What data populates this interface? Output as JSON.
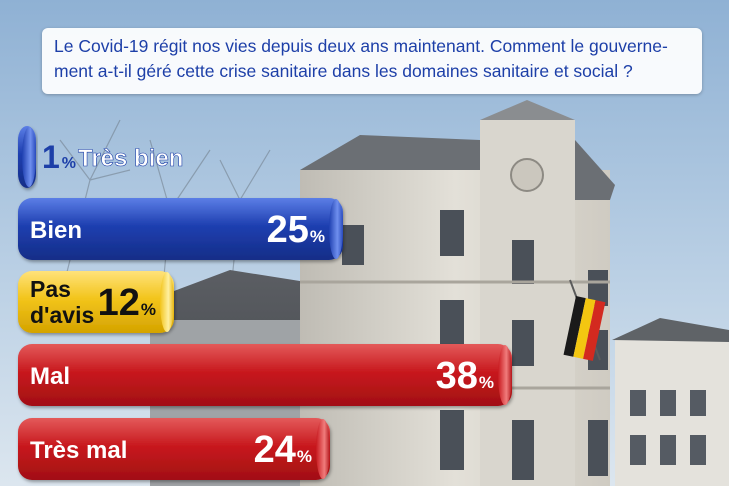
{
  "question": "Le Covid-19 régit nos vies depuis deux ans maintenant. Comment le gouverne-ment a-t-il géré cette crise sanitaire dans les domaines sanitaire et social ?",
  "colors": {
    "blue": "#1e3fb0",
    "yellow": "#f2c41b",
    "red": "#c8191e",
    "blue_light": "#5b7ee6",
    "yellow_light": "#ffe27a",
    "red_light": "#e35a5a"
  },
  "chart_data": {
    "type": "bar",
    "orientation": "horizontal",
    "categories": [
      "Très bien",
      "Bien",
      "Pas d'avis",
      "Mal",
      "Très mal"
    ],
    "values": [
      1,
      25,
      12,
      38,
      24
    ],
    "unit": "%",
    "bars": [
      {
        "label": "Très bien",
        "value": 1,
        "value_text": "1",
        "unit": "%",
        "color": "blue"
      },
      {
        "label": "Bien",
        "value": 25,
        "value_text": "25",
        "unit": "%",
        "color": "blue"
      },
      {
        "label": "Pas d'avis",
        "label_lines": [
          "Pas",
          "d'avis"
        ],
        "value": 12,
        "value_text": "12",
        "unit": "%",
        "color": "yellow"
      },
      {
        "label": "Mal",
        "value": 38,
        "value_text": "38",
        "unit": "%",
        "color": "red"
      },
      {
        "label": "Très mal",
        "value": 24,
        "value_text": "24",
        "unit": "%",
        "color": "red"
      }
    ]
  }
}
